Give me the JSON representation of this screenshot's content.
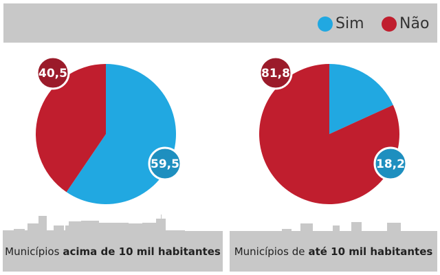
{
  "colors": {
    "sim": "#21a8e1",
    "nao": "#c01e2e",
    "sim_label": "#1e8fbf",
    "nao_label": "#9b1b2a",
    "gray": "#c8c8c8"
  },
  "legend": [
    {
      "label": "Sim"
    },
    {
      "label": "Não"
    }
  ],
  "chart_data": [
    {
      "type": "pie",
      "title": "Municípios acima de 10 mil habitantes",
      "title_prefix": "Municípios",
      "title_bold": "acima de 10 mil habitantes",
      "slices": [
        {
          "name": "Sim",
          "value": 59.5,
          "label": "59,5"
        },
        {
          "name": "Não",
          "value": 40.5,
          "label": "40,5"
        }
      ]
    },
    {
      "type": "pie",
      "title": "Municípios de até 10 mil habitantes",
      "title_prefix": "Municípios de",
      "title_bold": "até 10 mil habitantes",
      "slices": [
        {
          "name": "Sim",
          "value": 18.2,
          "label": "18,2"
        },
        {
          "name": "Não",
          "value": 81.8,
          "label": "81,8"
        }
      ]
    }
  ]
}
